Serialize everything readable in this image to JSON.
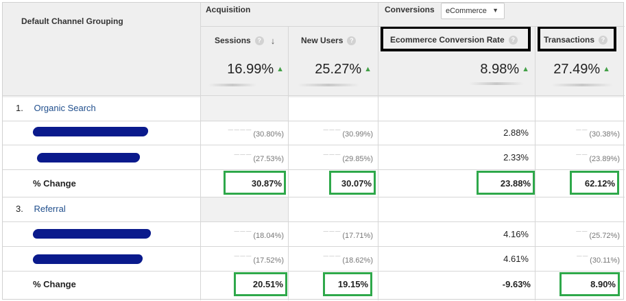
{
  "header": {
    "dimension_label": "Default Channel Grouping",
    "acquisition_label": "Acquisition",
    "conversions_label": "Conversions",
    "conversion_dropdown": "eCommerce",
    "columns": {
      "sessions": "Sessions",
      "new_users": "New Users",
      "ecr": "Ecommerce Conversion Rate",
      "transactions": "Transactions"
    }
  },
  "summary": {
    "sessions": "16.99%",
    "new_users": "25.27%",
    "ecr": "8.98%",
    "transactions": "27.49%"
  },
  "groups": [
    {
      "index": "1.",
      "name": "Organic Search",
      "rows": [
        {
          "sessions_pct": "(30.80%)",
          "new_users_pct": "(30.99%)",
          "ecr": "2.88%",
          "transactions_pct": "(30.38%)"
        },
        {
          "sessions_pct": "(27.53%)",
          "new_users_pct": "(29.85%)",
          "ecr": "2.33%",
          "transactions_pct": "(23.89%)"
        }
      ],
      "change_label": "% Change",
      "change": {
        "sessions": "30.87%",
        "new_users": "30.07%",
        "ecr": "23.88%",
        "transactions": "62.12%"
      }
    },
    {
      "index": "3.",
      "name": "Referral",
      "rows": [
        {
          "sessions_pct": "(18.04%)",
          "new_users_pct": "(17.71%)",
          "ecr": "4.16%",
          "transactions_pct": "(25.72%)"
        },
        {
          "sessions_pct": "(17.52%)",
          "new_users_pct": "(18.62%)",
          "ecr": "4.61%",
          "transactions_pct": "(30.11%)"
        }
      ],
      "change_label": "% Change",
      "change": {
        "sessions": "20.51%",
        "new_users": "19.15%",
        "ecr": "-9.63%",
        "transactions": "8.90%"
      }
    }
  ],
  "colors": {
    "highlight_green": "#2ea84a",
    "up_arrow": "#43a047",
    "link": "#1f4e8c",
    "redaction": "#0a1a8c"
  }
}
